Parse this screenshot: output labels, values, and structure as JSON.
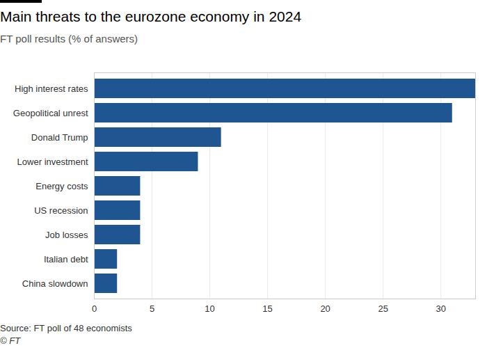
{
  "chart_data": {
    "type": "bar",
    "orientation": "horizontal",
    "title": "Main threats to the eurozone economy in 2024",
    "subtitle": "FT poll results (% of answers)",
    "source": "Source: FT poll of 48 economists",
    "credit": "© FT",
    "categories": [
      "High interest rates",
      "Geopolitical unrest",
      "Donald Trump",
      "Lower investment",
      "Energy costs",
      "US recession",
      "Job losses",
      "Italian debt",
      "China slowdown"
    ],
    "values": [
      33,
      31,
      11,
      9,
      4,
      4,
      4,
      2,
      2
    ],
    "color": "#1f5591",
    "xlim": [
      0,
      33
    ],
    "xticks": [
      0,
      5,
      10,
      15,
      20,
      25,
      30
    ],
    "grid": true
  }
}
